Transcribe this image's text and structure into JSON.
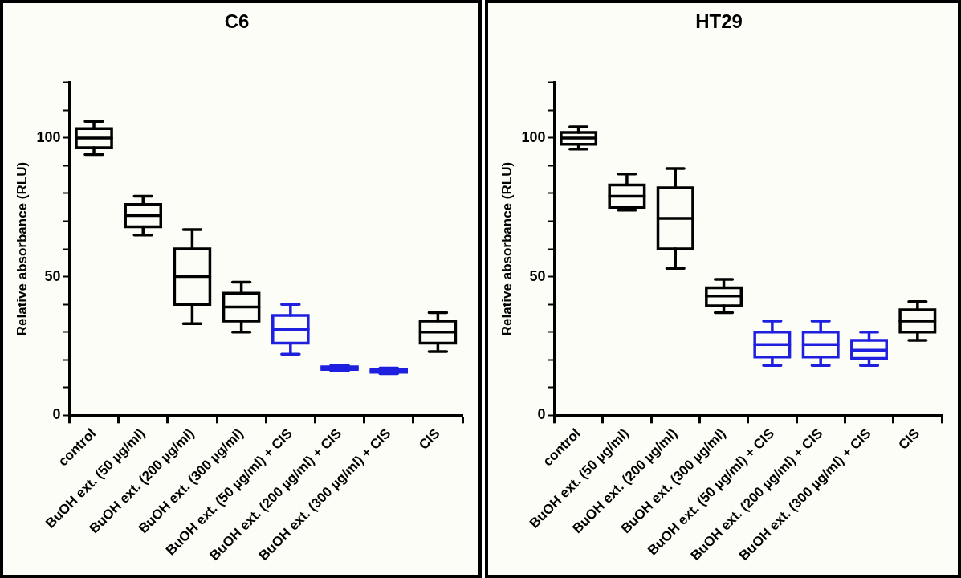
{
  "chart_data": [
    {
      "type": "box",
      "title": "C6",
      "ylabel": "Relative absorbance (RLU)",
      "categories": [
        "control",
        "BuOH ext. (50 µg/ml)",
        "BuOH ext. (200 µg/ml)",
        "BuOH ext. (300 µg/ml)",
        "BuOH ext. (50 µg/ml) + CIS",
        "BuOH ext. (200 µg/ml) + CIS",
        "BuOH ext. (300 µg/ml) + CIS",
        "CIS"
      ],
      "ylim": [
        0,
        120
      ],
      "yticks": [
        0,
        {
          "value": 10,
          "label": null
        },
        {
          "value": 20,
          "label": null
        },
        {
          "value": 30,
          "label": null
        },
        {
          "value": 40,
          "label": null
        },
        50,
        {
          "value": 60,
          "label": null
        },
        {
          "value": 70,
          "label": null
        },
        {
          "value": 80,
          "label": null
        },
        {
          "value": 90,
          "label": null
        },
        100,
        {
          "value": 110,
          "label": null
        },
        {
          "value": 120,
          "label": null
        }
      ],
      "grid": false,
      "legend": false,
      "colors": [
        "#000000",
        "#000000",
        "#000000",
        "#000000",
        "#1f1fe0",
        "#1f1fe0",
        "#1f1fe0",
        "#000000"
      ],
      "boxes": [
        {
          "low": 94,
          "q1": 96.5,
          "median": 100,
          "q3": 103.4,
          "high": 106
        },
        {
          "low": 65,
          "q1": 68,
          "median": 72,
          "q3": 76,
          "high": 79
        },
        {
          "low": 33,
          "q1": 40,
          "median": 50,
          "q3": 60,
          "high": 67
        },
        {
          "low": 30,
          "q1": 34,
          "median": 39,
          "q3": 44,
          "high": 48
        },
        {
          "low": 22,
          "q1": 26,
          "median": 31,
          "q3": 36,
          "high": 40
        },
        {
          "low": 16,
          "q1": 16.5,
          "median": 17,
          "q3": 17.5,
          "high": 18
        },
        {
          "low": 15,
          "q1": 15.5,
          "median": 16,
          "q3": 16.5,
          "high": 17
        },
        {
          "low": 23,
          "q1": 26,
          "median": 30,
          "q3": 34,
          "high": 37
        }
      ]
    },
    {
      "type": "box",
      "title": "HT29",
      "ylabel": "Relative absorbance (RLU)",
      "categories": [
        "control",
        "BuOH ext. (50 µg/ml)",
        "BuOH ext. (200 µg/ml)",
        "BuOH ext. (300 µg/ml)",
        "BuOH ext. (50 µg/ml) + CIS",
        "BuOH ext. (200 µg/ml) + CIS",
        "BuOH ext. (300 µg/ml) + CIS",
        "CIS"
      ],
      "ylim": [
        0,
        120
      ],
      "yticks": [
        0,
        {
          "value": 10,
          "label": null
        },
        {
          "value": 20,
          "label": null
        },
        {
          "value": 30,
          "label": null
        },
        {
          "value": 40,
          "label": null
        },
        50,
        {
          "value": 60,
          "label": null
        },
        {
          "value": 70,
          "label": null
        },
        {
          "value": 80,
          "label": null
        },
        {
          "value": 90,
          "label": null
        },
        100,
        {
          "value": 110,
          "label": null
        },
        {
          "value": 120,
          "label": null
        }
      ],
      "grid": false,
      "legend": false,
      "colors": [
        "#000000",
        "#000000",
        "#000000",
        "#000000",
        "#1f1fe0",
        "#1f1fe0",
        "#1f1fe0",
        "#000000"
      ],
      "boxes": [
        {
          "low": 96,
          "q1": 97.7,
          "median": 100,
          "q3": 102,
          "high": 104
        },
        {
          "low": 74,
          "q1": 75,
          "median": 79,
          "q3": 83,
          "high": 87
        },
        {
          "low": 53,
          "q1": 60,
          "median": 71,
          "q3": 82,
          "high": 89
        },
        {
          "low": 37,
          "q1": 39.5,
          "median": 43,
          "q3": 46,
          "high": 49
        },
        {
          "low": 18,
          "q1": 21,
          "median": 25.5,
          "q3": 30,
          "high": 34
        },
        {
          "low": 18,
          "q1": 21,
          "median": 25.5,
          "q3": 30,
          "high": 34
        },
        {
          "low": 18,
          "q1": 20.5,
          "median": 23.5,
          "q3": 27,
          "high": 30
        },
        {
          "low": 27,
          "q1": 30,
          "median": 34,
          "q3": 38,
          "high": 41
        }
      ]
    }
  ]
}
